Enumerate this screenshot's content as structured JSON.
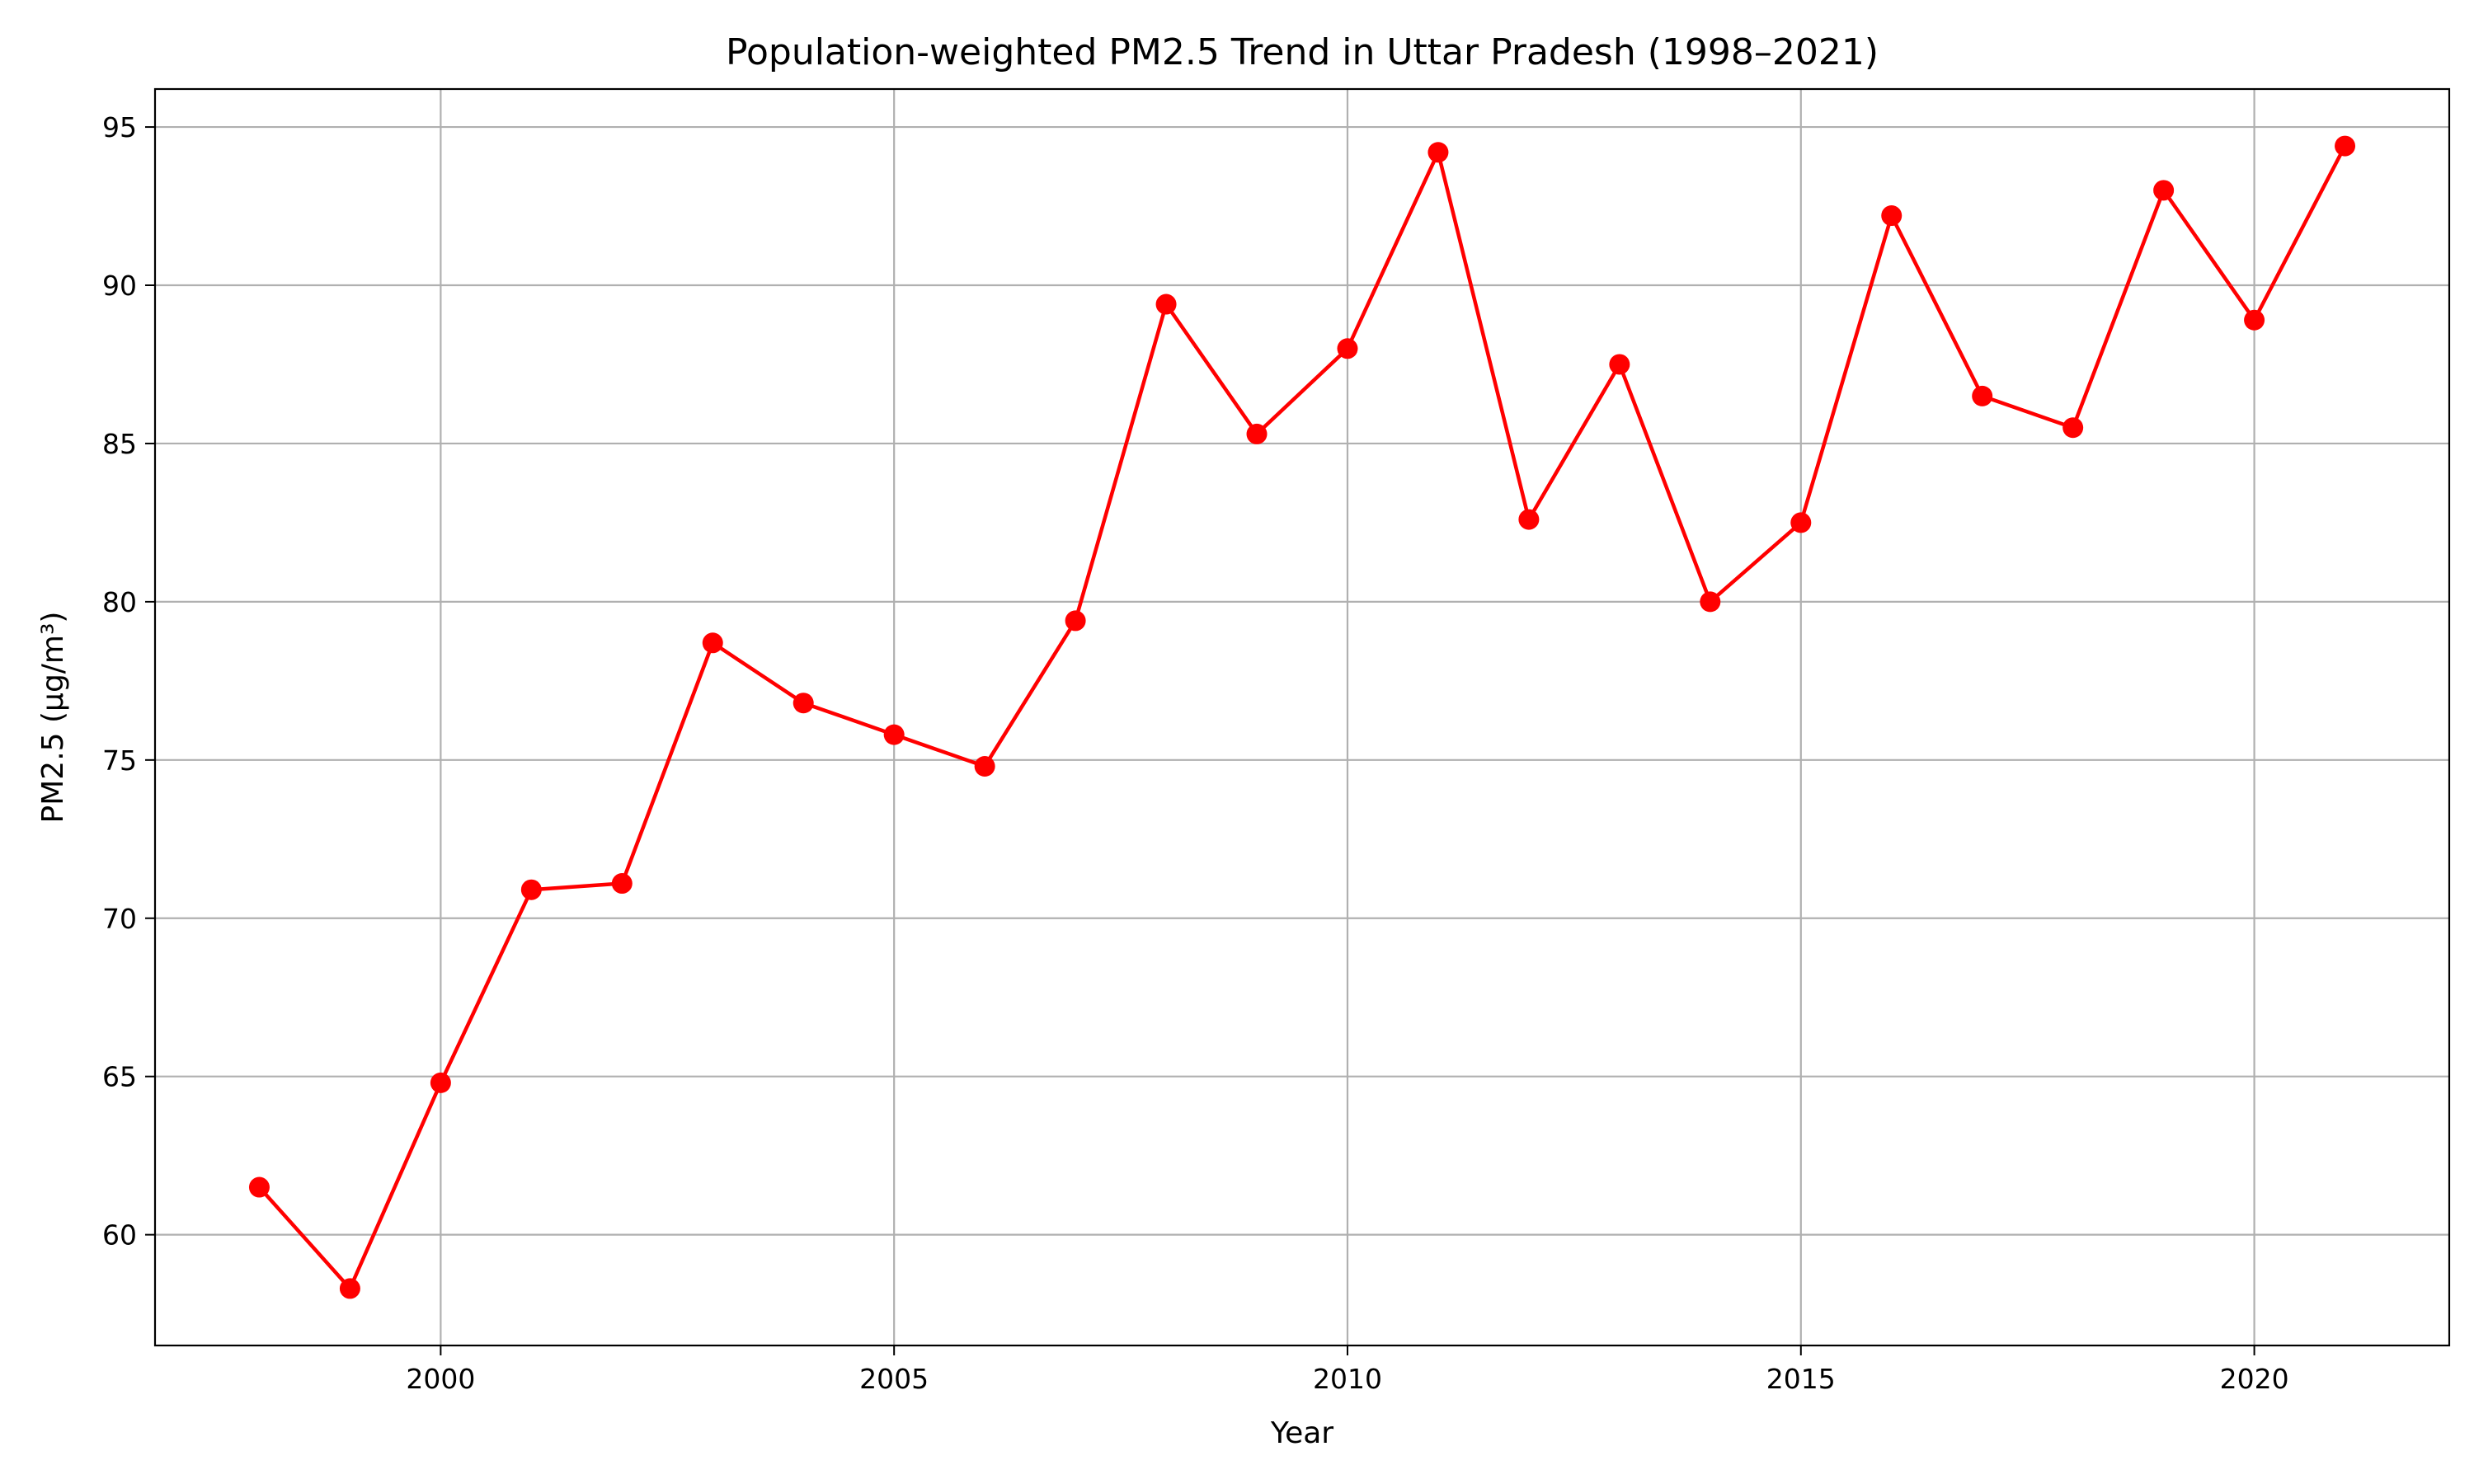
{
  "chart_data": {
    "type": "line",
    "title": "Population-weighted PM2.5 Trend in Uttar Pradesh (1998–2021)",
    "xlabel": "Year",
    "ylabel": "PM2.5 (µg/m³)",
    "xlim": [
      1996.85,
      2022.15
    ],
    "ylim": [
      56.5,
      96.2
    ],
    "xticks": [
      2000,
      2005,
      2010,
      2015,
      2020
    ],
    "yticks": [
      60,
      65,
      70,
      75,
      80,
      85,
      90,
      95
    ],
    "grid": true,
    "legend": "none",
    "colors": {
      "series": "#ff0000",
      "grid": "#b0b0b0",
      "frame": "#000000"
    },
    "series": [
      {
        "marker": "circle",
        "x": [
          1998,
          1999,
          2000,
          2001,
          2002,
          2003,
          2004,
          2005,
          2006,
          2007,
          2008,
          2009,
          2010,
          2011,
          2012,
          2013,
          2014,
          2015,
          2016,
          2017,
          2018,
          2019,
          2020,
          2021
        ],
        "values": [
          61.5,
          58.3,
          64.8,
          70.9,
          71.1,
          78.7,
          76.8,
          75.8,
          74.8,
          79.4,
          89.4,
          85.3,
          88.0,
          94.2,
          82.6,
          87.5,
          80.0,
          82.5,
          92.2,
          86.5,
          85.5,
          93.0,
          88.9,
          94.4
        ]
      }
    ]
  }
}
